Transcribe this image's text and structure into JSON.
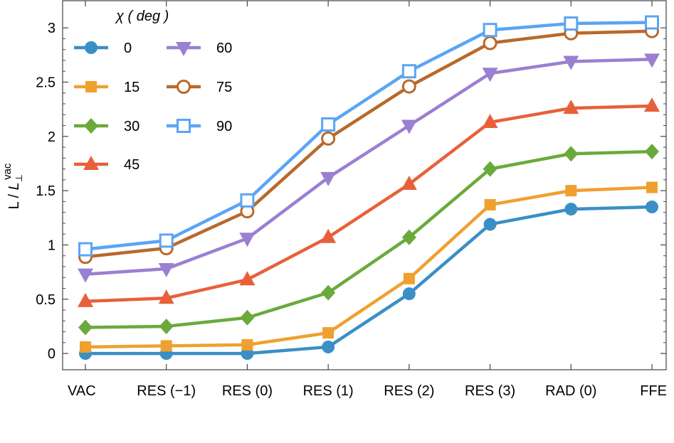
{
  "chart_data": {
    "type": "line",
    "categories": [
      "VAC",
      "RES (−1)",
      "RES (0)",
      "RES (1)",
      "RES (2)",
      "RES (3)",
      "RAD (0)",
      "FFE"
    ],
    "ylabel": {
      "main": "L / ",
      "italic": "L",
      "sub": "⊥",
      "sup": "vac"
    },
    "ylim": [
      -0.15,
      3.25
    ],
    "yticks": [
      0,
      0.5,
      1,
      1.5,
      2,
      2.5,
      3
    ],
    "ytick_labels": [
      "0",
      "0.5",
      "1",
      "1.5",
      "2",
      "2.5",
      "3"
    ],
    "legend": {
      "title": "χ ( deg )",
      "placement": "top-left"
    },
    "series": [
      {
        "name": "0",
        "color": "#3a8fc6",
        "marker": "circle",
        "values": [
          0.0,
          0.0,
          0.0,
          0.06,
          0.55,
          1.19,
          1.33,
          1.35
        ]
      },
      {
        "name": "15",
        "color": "#f0a030",
        "marker": "square",
        "values": [
          0.06,
          0.07,
          0.08,
          0.19,
          0.69,
          1.37,
          1.5,
          1.53
        ]
      },
      {
        "name": "30",
        "color": "#6aaa3a",
        "marker": "diamond",
        "values": [
          0.24,
          0.25,
          0.33,
          0.56,
          1.07,
          1.7,
          1.84,
          1.86
        ]
      },
      {
        "name": "45",
        "color": "#e8603a",
        "marker": "triangle-up",
        "values": [
          0.48,
          0.51,
          0.68,
          1.07,
          1.56,
          2.13,
          2.26,
          2.28
        ]
      },
      {
        "name": "60",
        "color": "#9b7fd0",
        "marker": "triangle-down",
        "values": [
          0.73,
          0.78,
          1.06,
          1.62,
          2.1,
          2.58,
          2.69,
          2.71
        ]
      },
      {
        "name": "75",
        "color": "#b8692a",
        "marker": "circle-open",
        "values": [
          0.89,
          0.97,
          1.31,
          1.98,
          2.46,
          2.86,
          2.95,
          2.97
        ]
      },
      {
        "name": "90",
        "color": "#5aa5f5",
        "marker": "square-open",
        "values": [
          0.96,
          1.04,
          1.41,
          2.11,
          2.6,
          2.98,
          3.04,
          3.05
        ]
      }
    ]
  }
}
